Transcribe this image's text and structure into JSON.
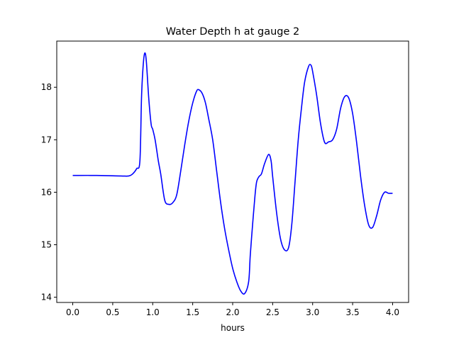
{
  "chart_data": {
    "type": "line",
    "title": "Water Depth h at gauge 2",
    "xlabel": "hours",
    "ylabel": "",
    "xlim": [
      -0.2,
      4.2
    ],
    "ylim": [
      13.9,
      18.88
    ],
    "xticks": [
      0.0,
      0.5,
      1.0,
      1.5,
      2.0,
      2.5,
      3.0,
      3.5,
      4.0
    ],
    "xtick_labels": [
      "0.0",
      "0.5",
      "1.0",
      "1.5",
      "2.0",
      "2.5",
      "3.0",
      "3.5",
      "4.0"
    ],
    "yticks": [
      14,
      15,
      16,
      17,
      18
    ],
    "ytick_labels": [
      "14",
      "15",
      "16",
      "17",
      "18"
    ],
    "grid": false,
    "series": [
      {
        "color": "#0000ff",
        "x": [
          0.0,
          0.3,
          0.6,
          0.7,
          0.75,
          0.8,
          0.84,
          0.86,
          0.88,
          0.9,
          0.92,
          0.95,
          0.98,
          1.0,
          1.03,
          1.07,
          1.1,
          1.15,
          1.2,
          1.25,
          1.3,
          1.35,
          1.4,
          1.45,
          1.5,
          1.55,
          1.58,
          1.62,
          1.66,
          1.7,
          1.75,
          1.8,
          1.85,
          1.9,
          1.95,
          2.0,
          2.05,
          2.1,
          2.15,
          2.2,
          2.22,
          2.25,
          2.28,
          2.3,
          2.33,
          2.36,
          2.4,
          2.45,
          2.48,
          2.5,
          2.55,
          2.6,
          2.65,
          2.7,
          2.74,
          2.78,
          2.82,
          2.86,
          2.9,
          2.95,
          2.98,
          3.0,
          3.05,
          3.1,
          3.15,
          3.2,
          3.25,
          3.3,
          3.35,
          3.4,
          3.45,
          3.5,
          3.55,
          3.6,
          3.65,
          3.7,
          3.75,
          3.8,
          3.85,
          3.9,
          3.95,
          4.0
        ],
        "values": [
          16.32,
          16.32,
          16.31,
          16.31,
          16.35,
          16.45,
          16.6,
          17.8,
          18.4,
          18.65,
          18.5,
          17.8,
          17.3,
          17.2,
          17.0,
          16.6,
          16.35,
          15.85,
          15.77,
          15.8,
          15.95,
          16.4,
          16.9,
          17.35,
          17.7,
          17.93,
          17.95,
          17.88,
          17.7,
          17.4,
          17.0,
          16.4,
          15.8,
          15.3,
          14.9,
          14.55,
          14.3,
          14.12,
          14.07,
          14.3,
          14.8,
          15.4,
          15.95,
          16.2,
          16.3,
          16.35,
          16.55,
          16.72,
          16.6,
          16.3,
          15.6,
          15.1,
          14.9,
          14.95,
          15.4,
          16.2,
          17.0,
          17.6,
          18.1,
          18.4,
          18.42,
          18.3,
          17.85,
          17.3,
          16.95,
          16.96,
          17.0,
          17.2,
          17.6,
          17.82,
          17.8,
          17.5,
          16.95,
          16.3,
          15.75,
          15.38,
          15.33,
          15.55,
          15.85,
          16.0,
          15.98,
          15.98
        ]
      }
    ]
  }
}
